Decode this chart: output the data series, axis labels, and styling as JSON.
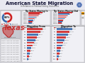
{
  "title": "American State Migration",
  "subtitle": "In Relation to Political Voting Outcomes",
  "bg_color": "#d0d0d8",
  "header_bg": "#e8e8f0",
  "panel_bg": "#f0f0f5",
  "panel_edge": "#aaaaaa",
  "dark_panel": "#2a2a3a",
  "red_color": "#cc2222",
  "blue_color": "#3366aa",
  "gold_color": "#e8a020",
  "orange_color": "#e06010",
  "state_color": "#cc3333",
  "texas_fill": "#cc3333",
  "text_dark": "#111111",
  "text_white": "#ffffff",
  "text_gray": "#555555",
  "title_color": "#111133",
  "donut_red": 0.62,
  "donut_blue": 0.38,
  "bars_in_vals": [
    22,
    18,
    15,
    12,
    10,
    8,
    7,
    6
  ],
  "bars_in_colors": [
    "#cc2222",
    "#cc2222",
    "#cc2222",
    "#3366aa",
    "#cc2222",
    "#3366aa",
    "#cc2222",
    "#3366aa"
  ],
  "bars_out_vals": [
    20,
    16,
    13,
    11,
    9,
    7,
    6,
    5
  ],
  "bars_out_colors": [
    "#cc2222",
    "#3366aa",
    "#cc2222",
    "#cc2222",
    "#3366aa",
    "#cc2222",
    "#3366aa",
    "#cc2222"
  ],
  "bfrom_vals": [
    38,
    32,
    28,
    24,
    20,
    17,
    14,
    11,
    9,
    7,
    5,
    3
  ],
  "bfrom_colors": [
    "#cc2222",
    "#cc2222",
    "#3366aa",
    "#cc2222",
    "#3366aa",
    "#cc2222",
    "#cc2222",
    "#3366aa",
    "#cc2222",
    "#3366aa",
    "#cc2222",
    "#3366aa"
  ],
  "bto_vals": [
    35,
    29,
    25,
    21,
    18,
    15,
    12,
    10,
    8,
    6,
    4,
    3
  ],
  "bto_colors": [
    "#3366aa",
    "#cc2222",
    "#3366aa",
    "#cc2222",
    "#3366aa",
    "#cc2222",
    "#3366aa",
    "#cc2222",
    "#3366aa",
    "#cc2222",
    "#3366aa",
    "#cc2222"
  ]
}
